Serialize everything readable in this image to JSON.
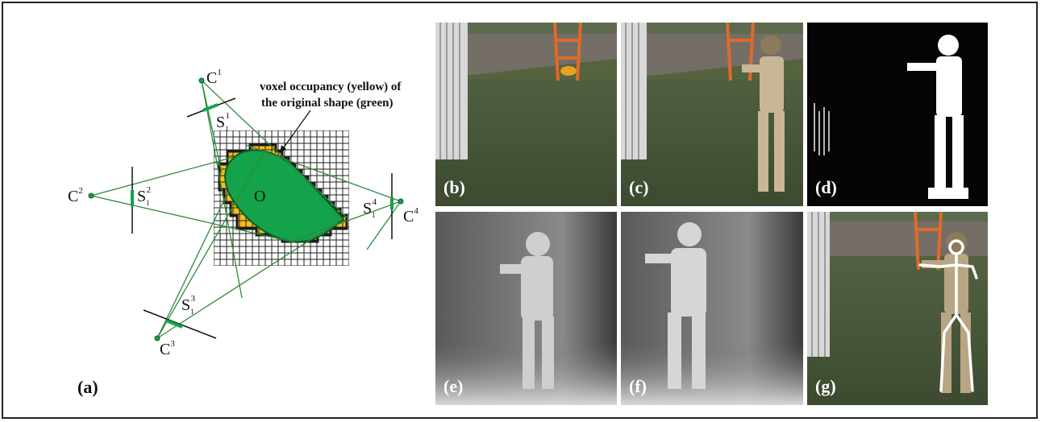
{
  "diagram": {
    "panel_label": "(a)",
    "annotation_line1": "voxel occupancy (yellow) of",
    "annotation_line2": "the original shape (green)",
    "center_label": "O",
    "cameras": [
      {
        "name": "C",
        "sup": "1"
      },
      {
        "name": "C",
        "sup": "2"
      },
      {
        "name": "C",
        "sup": "3"
      },
      {
        "name": "C",
        "sup": "4"
      }
    ],
    "silhouettes": [
      {
        "name": "S",
        "sub": "1",
        "sup": "1"
      },
      {
        "name": "S",
        "sub": "1",
        "sup": "2"
      },
      {
        "name": "S",
        "sub": "1",
        "sup": "3"
      },
      {
        "name": "S",
        "sub": "1",
        "sup": "4"
      }
    ],
    "colors": {
      "voxel": "#f5bf1a",
      "shape": "#14a24a",
      "ray": "#2e8b3a"
    }
  },
  "photos": [
    {
      "label": "(b)",
      "kind": "background"
    },
    {
      "label": "(c)",
      "kind": "frame"
    },
    {
      "label": "(d)",
      "kind": "silhouette"
    },
    {
      "label": "(e)",
      "kind": "depth"
    },
    {
      "label": "(f)",
      "kind": "depth"
    },
    {
      "label": "(g)",
      "kind": "skeleton"
    }
  ]
}
